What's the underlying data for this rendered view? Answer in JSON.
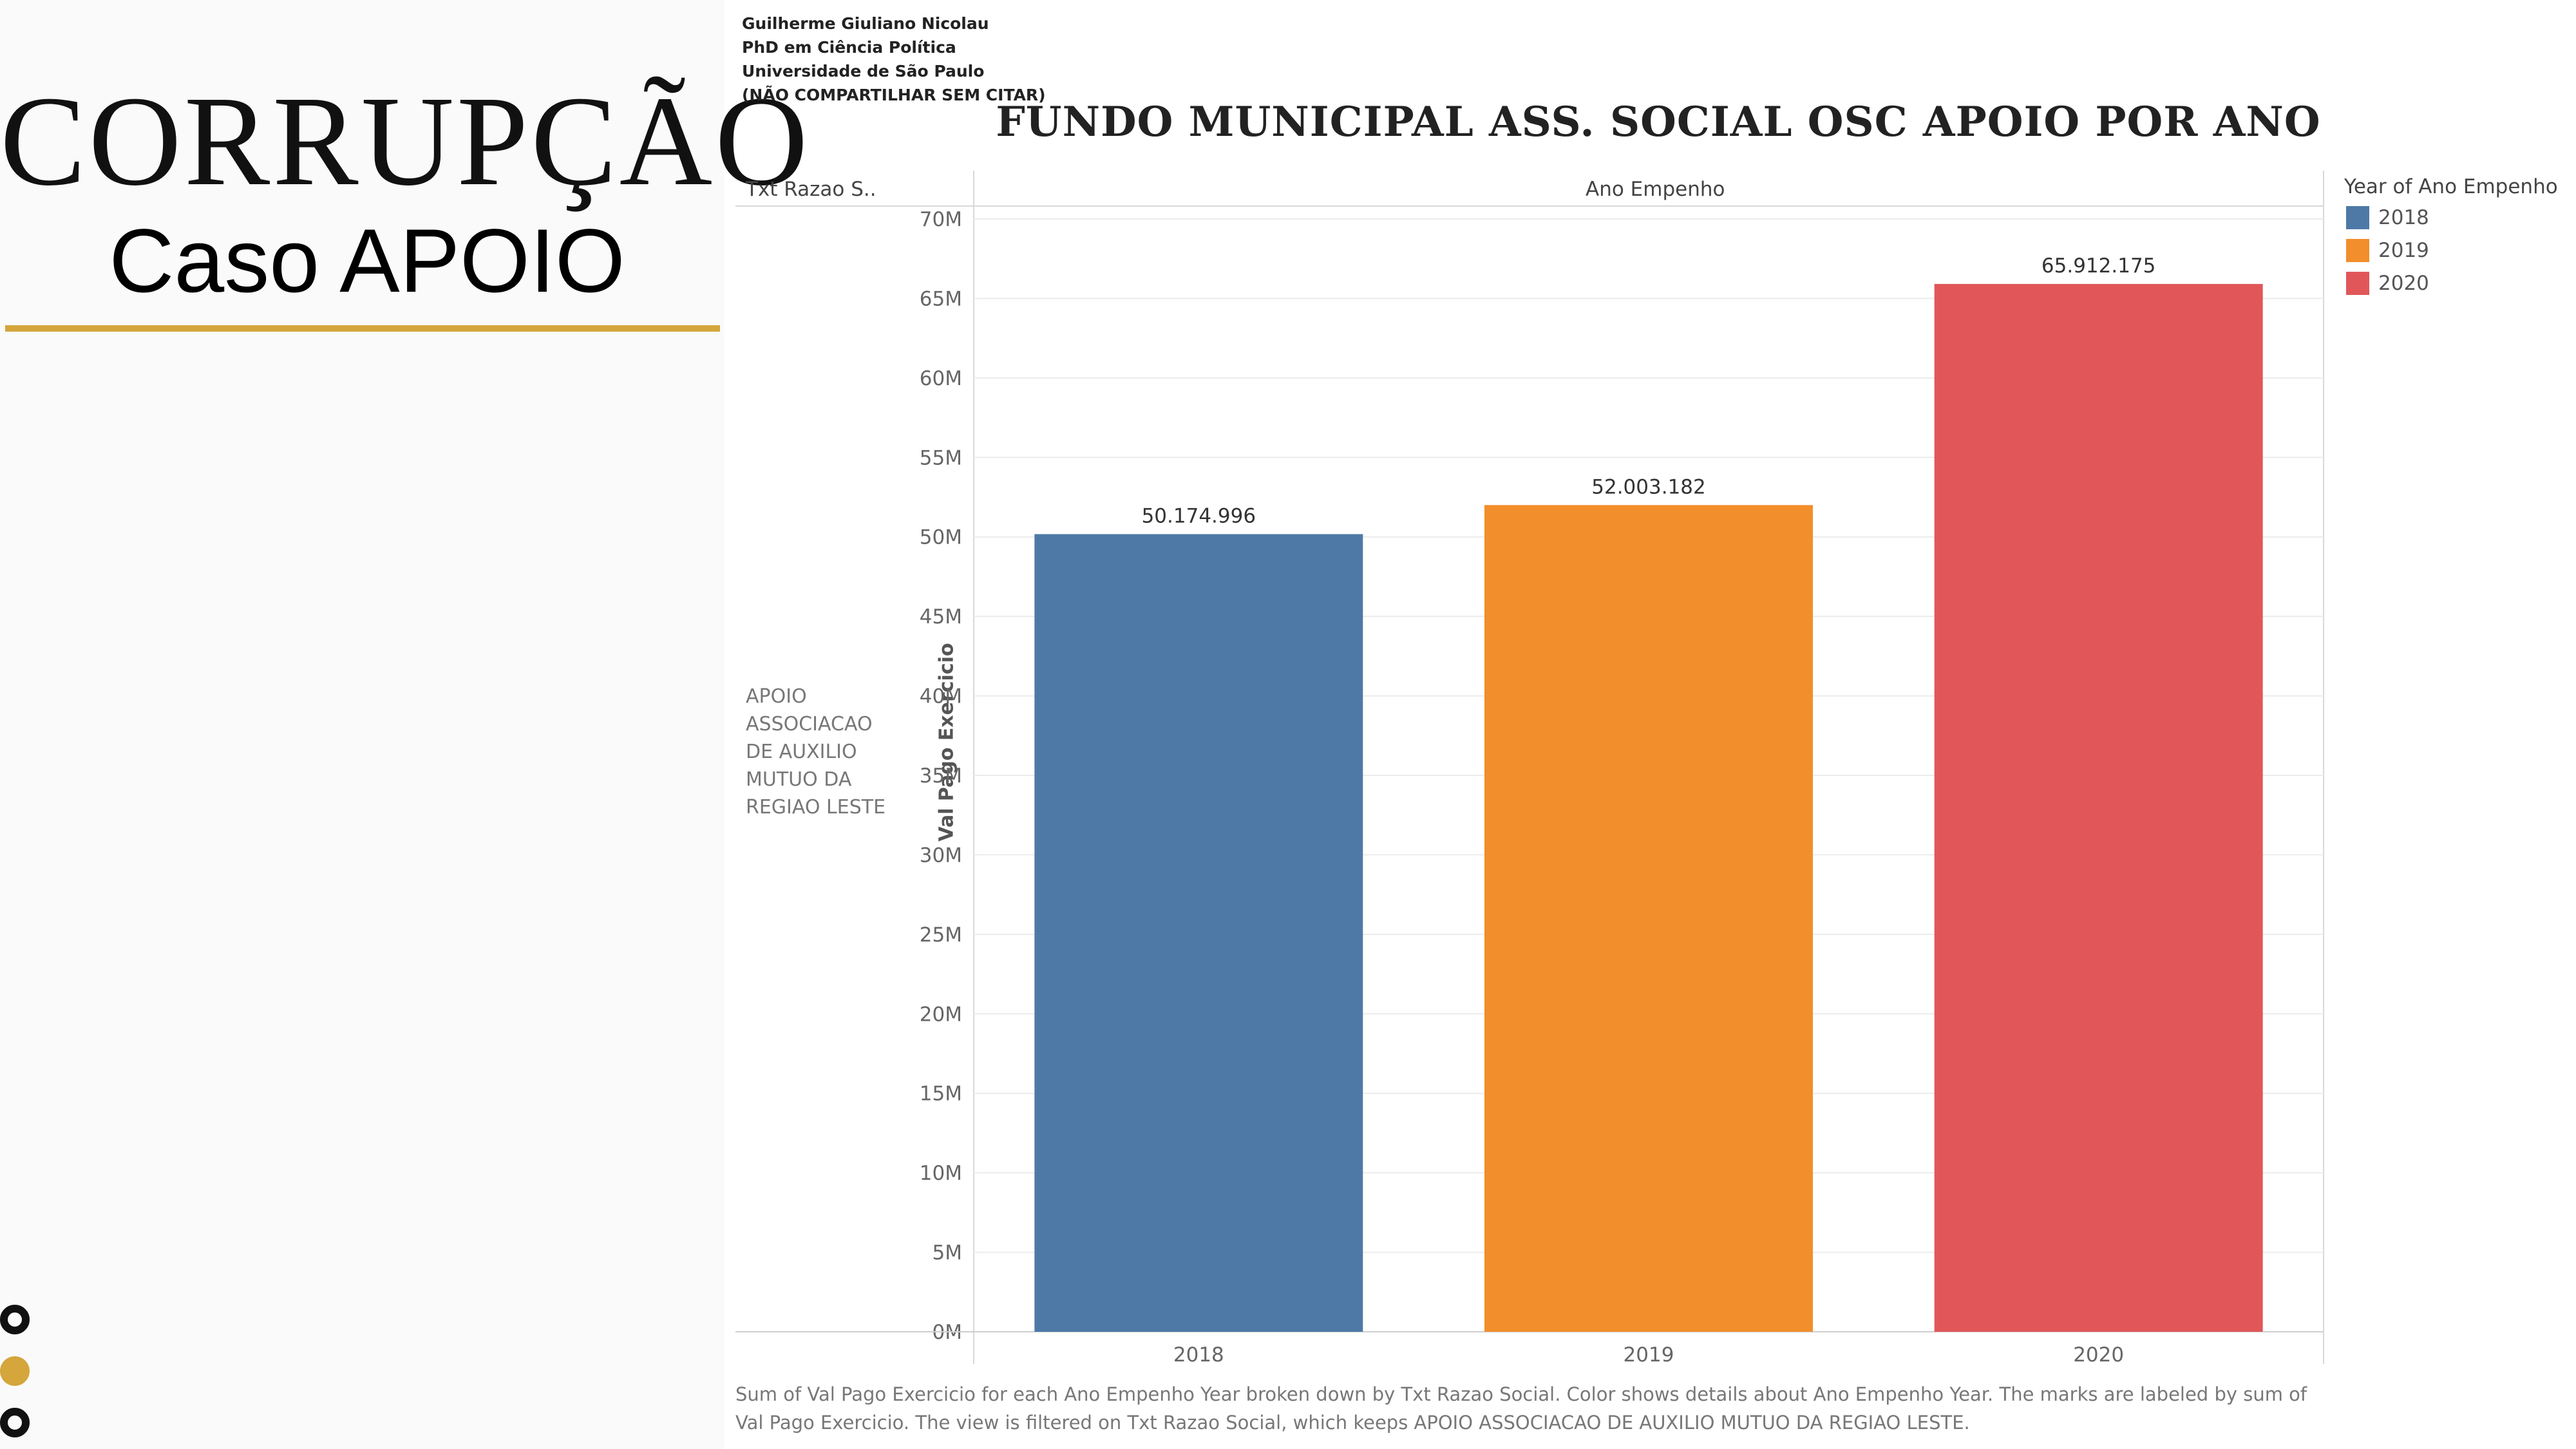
{
  "slide": {
    "title": "CORRUPÇÃO",
    "subtitle": "Caso APOIO",
    "accent_color": "#d4a63c"
  },
  "author": {
    "name": "Guilherme Giuliano Nicolau",
    "degree": "PhD em Ciência Política",
    "institution": "Universidade de São Paulo",
    "notice": "(NÃO COMPARTILHAR SEM CITAR)"
  },
  "headers": {
    "row_header": "Txt Razao S..",
    "column_header": "Ano Empenho",
    "legend_title": "Year of Ano Empenho"
  },
  "row_label": "APOIO ASSOCIACAO DE AUXILIO MUTUO DA REGIAO LESTE",
  "footer": "Sum of Val Pago Exercicio for each Ano Empenho Year broken down by Txt Razao Social.  Color shows details about Ano Empenho Year.  The marks are labeled by sum of Val Pago Exercicio. The view is filtered on Txt Razao Social, which keeps APOIO ASSOCIACAO DE AUXILIO MUTUO DA REGIAO LESTE.",
  "chart_data": {
    "type": "bar",
    "title": "FUNDO MUNICIPAL ASS. SOCIAL  OSC APOIO  POR ANO",
    "xlabel": "Ano Empenho",
    "ylabel": "Val Pago Exercicio",
    "categories": [
      "2018",
      "2019",
      "2020"
    ],
    "values": [
      50174996,
      52003182,
      65912175
    ],
    "value_labels": [
      "50.174.996",
      "52.003.182",
      "65.912.175"
    ],
    "colors": [
      "#4e79a7",
      "#f28e2b",
      "#e15759"
    ],
    "ylim": [
      0,
      70000000
    ],
    "yticks": [
      0,
      5000000,
      10000000,
      15000000,
      20000000,
      25000000,
      30000000,
      35000000,
      40000000,
      45000000,
      50000000,
      55000000,
      60000000,
      65000000,
      70000000
    ],
    "ytick_labels": [
      "0M",
      "5M",
      "10M",
      "15M",
      "20M",
      "25M",
      "30M",
      "35M",
      "40M",
      "45M",
      "50M",
      "55M",
      "60M",
      "65M",
      "70M"
    ],
    "grid": true,
    "legend": "top-right"
  }
}
